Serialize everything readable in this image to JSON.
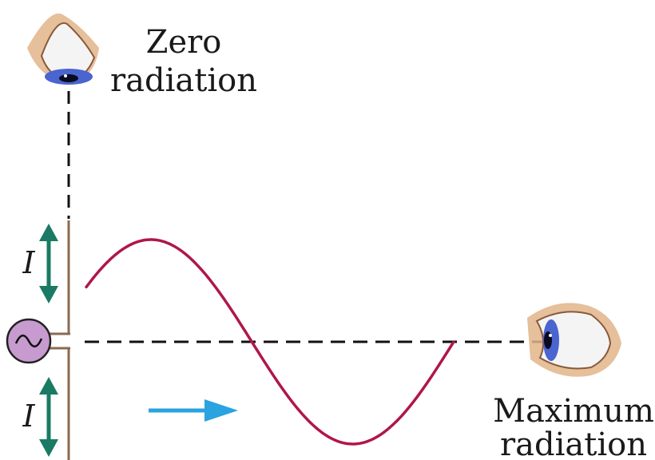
{
  "labels": {
    "zero_line1": "Zero",
    "zero_line2": "radiation",
    "max_line1": "Maximum",
    "max_line2": "radiation",
    "current_top": "I",
    "current_bottom": "I"
  },
  "icons": {
    "top_eye": "eye-looking-down-icon",
    "side_eye": "eye-looking-left-icon",
    "source": "ac-source-icon",
    "propagation": "arrow-right-icon",
    "current_arrows": "double-arrow-vertical-icon"
  },
  "colors": {
    "wave": "#b0164a",
    "arrow_blue": "#2aa3e0",
    "current_green": "#1a7a64",
    "source_fill": "#c79bcf",
    "antenna": "#8a6a50",
    "iris": "#4a64d0",
    "skin": "#e2b48a"
  }
}
